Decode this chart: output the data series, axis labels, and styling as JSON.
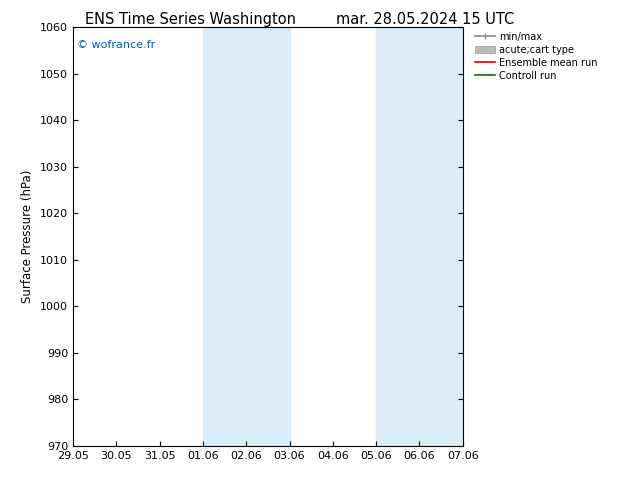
{
  "title_left": "ENS Time Series Washington",
  "title_right": "mar. 28.05.2024 15 UTC",
  "ylabel": "Surface Pressure (hPa)",
  "ylim": [
    970,
    1060
  ],
  "yticks": [
    970,
    980,
    990,
    1000,
    1010,
    1020,
    1030,
    1040,
    1050,
    1060
  ],
  "xtick_labels": [
    "29.05",
    "30.05",
    "31.05",
    "01.06",
    "02.06",
    "03.06",
    "04.06",
    "05.06",
    "06.06",
    "07.06"
  ],
  "xtick_positions": [
    0,
    1,
    2,
    3,
    4,
    5,
    6,
    7,
    8,
    9
  ],
  "shaded_bands": [
    {
      "x_start": 3.0,
      "x_end": 5.0
    },
    {
      "x_start": 7.0,
      "x_end": 9.0
    }
  ],
  "shade_color": "#daedf8",
  "watermark": "© wofrance.fr",
  "watermark_color": "#0055cc",
  "legend_entries": [
    {
      "label": "min/max",
      "color": "#888888",
      "lw": 1.2
    },
    {
      "label": "acute;cart type",
      "color": "#bbbbbb",
      "lw": 5
    },
    {
      "label": "Ensemble mean run",
      "color": "#dd0000",
      "lw": 1.2
    },
    {
      "label": "Controll run",
      "color": "#007700",
      "lw": 1.2
    }
  ],
  "bg_color": "#ffffff",
  "title_fontsize": 10.5,
  "axis_fontsize": 8.5,
  "tick_fontsize": 8
}
